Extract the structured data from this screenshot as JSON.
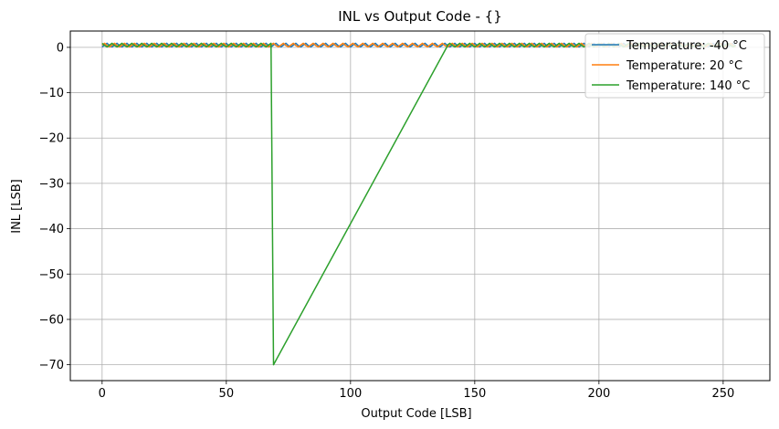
{
  "chart_data": {
    "type": "line",
    "title": "INL vs Output Code - {}",
    "xlabel": "Output Code [LSB]",
    "ylabel": "INL [LSB]",
    "xlim": [
      -12.8,
      268.8
    ],
    "ylim": [
      -73.5,
      3.6
    ],
    "xticks": [
      0,
      50,
      100,
      150,
      200,
      250
    ],
    "yticks": [
      0,
      -10,
      -20,
      -30,
      -40,
      -50,
      -60,
      -70
    ],
    "xtick_labels": [
      "0",
      "50",
      "100",
      "150",
      "200",
      "250"
    ],
    "ytick_labels": [
      "0",
      "−10",
      "−20",
      "−30",
      "−40",
      "−50",
      "−60",
      "−70"
    ],
    "grid": true,
    "legend_position": "top-right",
    "sawtooth": {
      "period": 4,
      "values": [
        0.1,
        0.5,
        0.9,
        0.4
      ]
    },
    "series": [
      {
        "name": "Temperature: -40 °C",
        "color": "#1f77b4",
        "x_range": [
          0,
          255
        ],
        "pattern": "sawtooth"
      },
      {
        "name": "Temperature: 20 °C",
        "color": "#ff7f0e",
        "x_range": [
          0,
          255
        ],
        "pattern": "sawtooth"
      },
      {
        "name": "Temperature: 140 °C",
        "color": "#2ca02c",
        "x_range": [
          0,
          255
        ],
        "pattern": "sawtooth",
        "segments": [
          {
            "x_from": 0,
            "x_to": 68,
            "pattern": "sawtooth"
          },
          {
            "points": [
              [
                68,
                0.2
              ],
              [
                69,
                -70
              ],
              [
                139,
                0.3
              ]
            ]
          },
          {
            "x_from": 139,
            "x_to": 255,
            "pattern": "sawtooth"
          }
        ]
      }
    ]
  }
}
